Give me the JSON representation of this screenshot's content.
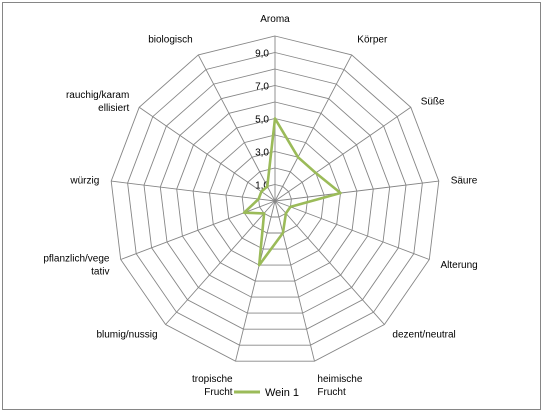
{
  "chart_data": {
    "type": "radar",
    "categories": [
      "Aroma",
      "Körper",
      "Süße",
      "Säure",
      "Alterung",
      "dezent/neutral",
      "heimische Frucht",
      "tropische Frucht",
      "blumig/nussig",
      "pflanzlich/vegetativ",
      "würzig",
      "rauchig/karamellisiert",
      "biologisch"
    ],
    "category_lines": [
      [
        "Aroma"
      ],
      [
        "Körper"
      ],
      [
        "Süße"
      ],
      [
        "Säure"
      ],
      [
        "Alterung"
      ],
      [
        "dezent/neutral"
      ],
      [
        "heimische",
        "Frucht"
      ],
      [
        "tropische",
        "Frucht"
      ],
      [
        "blumig/nussig"
      ],
      [
        "pflanzlich/vege",
        "tativ"
      ],
      [
        "würzig"
      ],
      [
        "rauchig/karam",
        "ellisiert"
      ],
      [
        "biologisch"
      ]
    ],
    "series": [
      {
        "name": "Wein 1",
        "color": "#9bbb59",
        "values": [
          5,
          3,
          3,
          4,
          1,
          1,
          2,
          4,
          1,
          2,
          1,
          1,
          1
        ]
      }
    ],
    "rlim": [
      0,
      10
    ],
    "gridlines": [
      1,
      2,
      3,
      4,
      5,
      6,
      7,
      8,
      9,
      10
    ],
    "tick_labels": [
      "1,0",
      "3,0",
      "5,0",
      "7,0",
      "9,0"
    ],
    "tick_values": [
      1,
      3,
      5,
      7,
      9
    ],
    "grid": true,
    "legend": "bottom"
  }
}
